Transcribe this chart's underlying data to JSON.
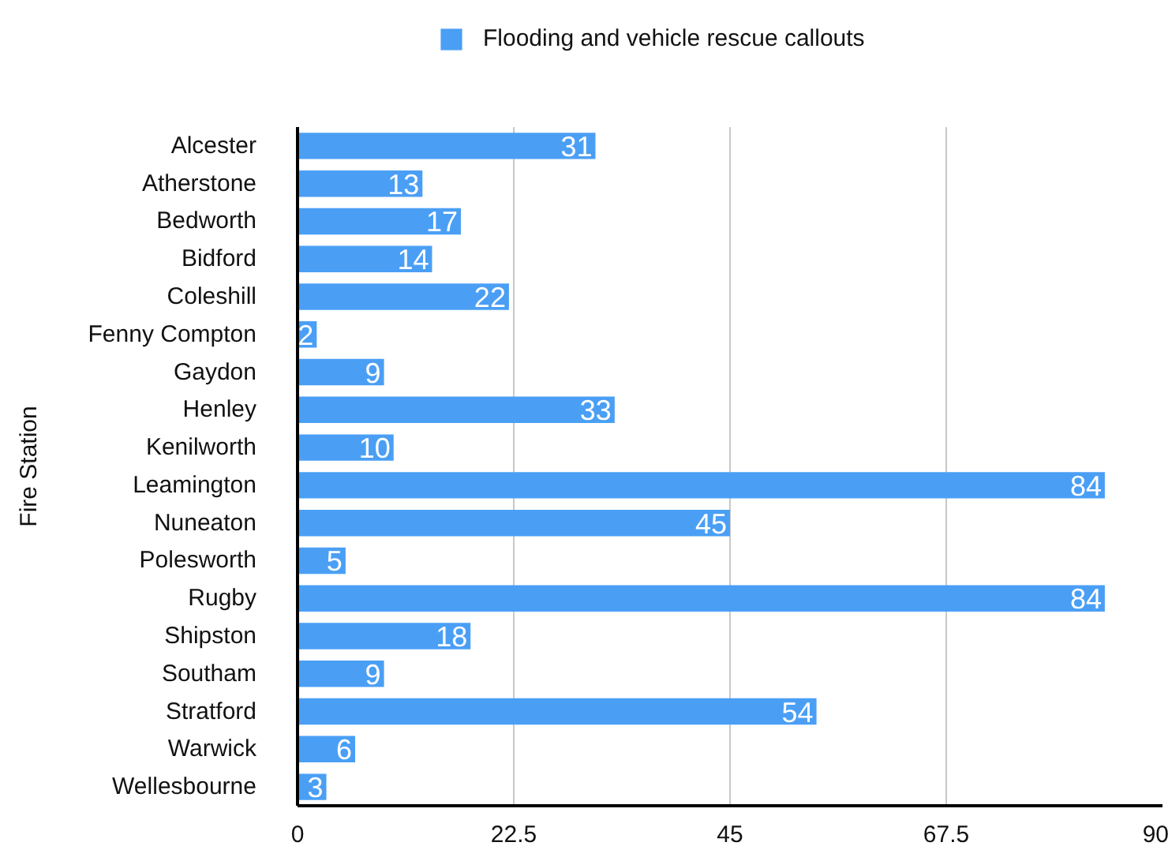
{
  "chart_data": {
    "type": "bar",
    "orientation": "horizontal",
    "ylabel": "Fire Station",
    "categories": [
      "Alcester",
      "Atherstone",
      "Bedworth",
      "Bidford",
      "Coleshill",
      "Fenny Compton",
      "Gaydon",
      "Henley",
      "Kenilworth",
      "Leamington",
      "Nuneaton",
      "Polesworth",
      "Rugby",
      "Shipston",
      "Southam",
      "Stratford",
      "Warwick",
      "Wellesbourne"
    ],
    "series": [
      {
        "name": "Flooding and vehicle rescue callouts",
        "color": "#4a9ff5",
        "values": [
          31,
          13,
          17,
          14,
          22,
          2,
          9,
          33,
          10,
          84,
          45,
          5,
          84,
          18,
          9,
          54,
          6,
          3
        ]
      }
    ],
    "xlim": [
      0,
      90
    ],
    "xticks": [
      0,
      22.5,
      45,
      67.5,
      90
    ],
    "grid": "x",
    "legend": "top",
    "data_labels": true
  }
}
